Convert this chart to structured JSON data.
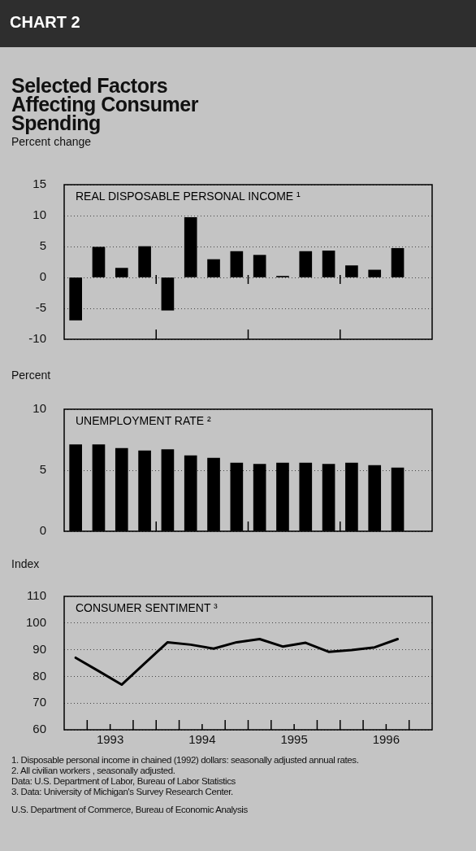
{
  "chart_data": [
    {
      "type": "bar",
      "title": "REAL DISPOSABLE PERSONAL INCOME ¹",
      "ylabel": "Percent change",
      "annotations": [
        "CHART 2",
        "Selected Factors Affecting Consumer Spending"
      ],
      "x": [
        1993.125,
        1993.375,
        1993.625,
        1993.875,
        1994.125,
        1994.375,
        1994.625,
        1994.875,
        1995.125,
        1995.375,
        1995.625,
        1995.875,
        1996.125,
        1996.375,
        1996.625
      ],
      "values": [
        -6.9,
        4.9,
        1.5,
        5.0,
        -5.3,
        9.7,
        2.9,
        4.2,
        3.6,
        0.2,
        4.2,
        4.3,
        1.9,
        1.2,
        4.7
      ],
      "color": "#000000",
      "xlim": [
        1993,
        1997
      ],
      "xticks": [
        {
          "value": 1994,
          "label": null
        },
        {
          "value": 1995,
          "label": null
        },
        {
          "value": 1996,
          "label": null
        }
      ],
      "ylim": [
        -10,
        15
      ],
      "yticks": [
        -10,
        -5,
        0,
        5,
        10,
        15
      ],
      "grid": "y",
      "tick_labels": "y"
    },
    {
      "type": "bar",
      "title": "UNEMPLOYMENT RATE ²",
      "ylabel": "Percent",
      "x": [
        1993.125,
        1993.375,
        1993.625,
        1993.875,
        1994.125,
        1994.375,
        1994.625,
        1994.875,
        1995.125,
        1995.375,
        1995.625,
        1995.875,
        1996.125,
        1996.375,
        1996.625
      ],
      "values": [
        7.1,
        7.1,
        6.8,
        6.6,
        6.7,
        6.2,
        6.0,
        5.6,
        5.5,
        5.6,
        5.6,
        5.5,
        5.6,
        5.4,
        5.2
      ],
      "color": "#000000",
      "xlim": [
        1993,
        1997
      ],
      "xticks": [
        {
          "value": 1994,
          "label": null
        },
        {
          "value": 1995,
          "label": null
        },
        {
          "value": 1996,
          "label": null
        }
      ],
      "ylim": [
        0,
        10
      ],
      "yticks": [
        0,
        5,
        10
      ],
      "grid": "y",
      "tick_labels": "y"
    },
    {
      "type": "line",
      "title": "CONSUMER SENTIMENT ³",
      "ylabel": "Index",
      "annotations": [
        "1. Disposable personal income in chained (1992) dollars: seasonally adjusted annual rates.",
        "2. All civilian workers , seasonally adjusted.",
        "Data: U.S. Department of Labor, Bureau of Labor Statistics",
        "3. Data: University of Michigan's Survey  Research Center.",
        "U.S. Department of Commerce, Bureau of Economic Analysis"
      ],
      "x": [
        1993.125,
        1993.375,
        1993.625,
        1993.875,
        1994.125,
        1994.375,
        1994.625,
        1994.875,
        1995.125,
        1995.375,
        1995.625,
        1995.875,
        1996.125,
        1996.375,
        1996.625
      ],
      "values": [
        87.0,
        82.0,
        76.9,
        84.9,
        92.8,
        91.9,
        90.4,
        92.8,
        94.0,
        91.2,
        92.6,
        89.2,
        89.9,
        90.9,
        94.0
      ],
      "color": "#000000",
      "xlim": [
        1993,
        1997
      ],
      "xticks": [
        {
          "value": 1993.25,
          "label": null
        },
        {
          "value": 1993.5,
          "label": "1993"
        },
        {
          "value": 1993.75,
          "label": null
        },
        {
          "value": 1994,
          "label": null
        },
        {
          "value": 1994.25,
          "label": null
        },
        {
          "value": 1994.5,
          "label": "1994"
        },
        {
          "value": 1994.75,
          "label": null
        },
        {
          "value": 1995,
          "label": null
        },
        {
          "value": 1995.25,
          "label": null
        },
        {
          "value": 1995.5,
          "label": "1995"
        },
        {
          "value": 1995.75,
          "label": null
        },
        {
          "value": 1996,
          "label": null
        },
        {
          "value": 1996.25,
          "label": null
        },
        {
          "value": 1996.5,
          "label": "1996"
        },
        {
          "value": 1996.75,
          "label": null
        }
      ],
      "ylim": [
        60,
        110
      ],
      "yticks": [
        60,
        70,
        80,
        90,
        100,
        110
      ],
      "grid": "y"
    }
  ]
}
